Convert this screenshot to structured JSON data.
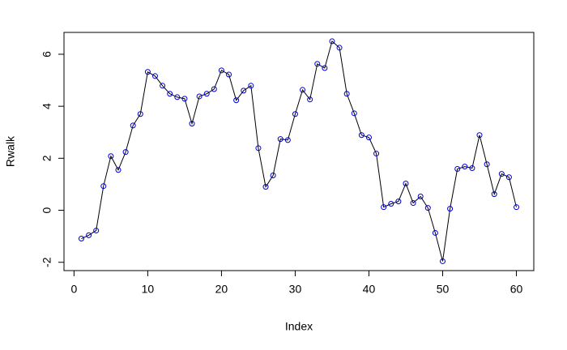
{
  "chart_data": {
    "type": "line",
    "xlabel": "Index",
    "ylabel": "Rwalk",
    "x": [
      1,
      2,
      3,
      4,
      5,
      6,
      7,
      8,
      9,
      10,
      11,
      12,
      13,
      14,
      15,
      16,
      17,
      18,
      19,
      20,
      21,
      22,
      23,
      24,
      25,
      26,
      27,
      28,
      29,
      30,
      31,
      32,
      33,
      34,
      35,
      36,
      37,
      38,
      39,
      40,
      41,
      42,
      43,
      44,
      45,
      46,
      47,
      48,
      49,
      50,
      51,
      52,
      53,
      54,
      55,
      56,
      57,
      58,
      59,
      60
    ],
    "series": [
      {
        "name": "Rwalk",
        "color": "#000000",
        "marker_color": "#0000cc",
        "values": [
          -1.09,
          -0.96,
          -0.78,
          0.93,
          2.08,
          1.55,
          2.24,
          3.26,
          3.7,
          5.32,
          5.16,
          4.79,
          4.48,
          4.35,
          4.29,
          3.33,
          4.38,
          4.48,
          4.66,
          5.38,
          5.22,
          4.23,
          4.6,
          4.79,
          2.39,
          0.9,
          1.34,
          2.74,
          2.7,
          3.7,
          4.63,
          4.26,
          5.63,
          5.47,
          6.5,
          6.25,
          4.48,
          3.73,
          2.89,
          2.8,
          2.18,
          0.12,
          0.25,
          0.34,
          1.03,
          0.28,
          0.53,
          0.09,
          -0.87,
          -1.96,
          0.06,
          1.59,
          1.68,
          1.62,
          2.89,
          1.77,
          0.62,
          1.4,
          1.27,
          0.12
        ]
      }
    ],
    "xlim": [
      -1.36,
      62.36
    ],
    "ylim": [
      -2.32,
      6.84
    ],
    "xticks": [
      0,
      10,
      20,
      30,
      40,
      50,
      60
    ],
    "yticks": [
      -2,
      0,
      2,
      4,
      6
    ]
  }
}
